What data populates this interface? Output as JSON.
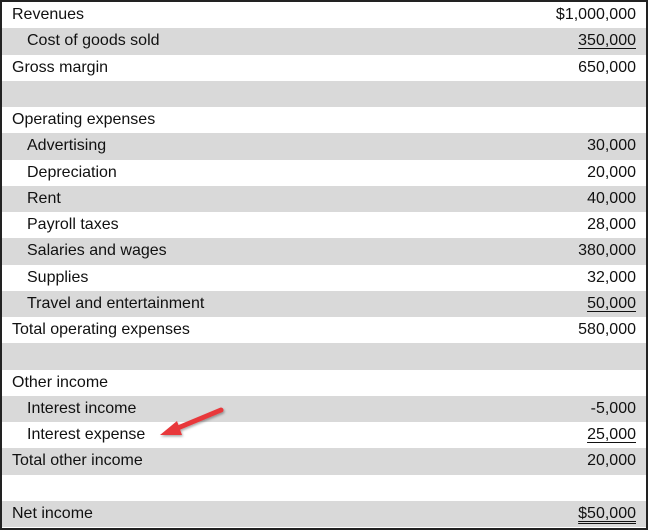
{
  "statement": {
    "rows": [
      {
        "label": "Revenues",
        "value": "$1,000,000",
        "indent": false,
        "shaded": false,
        "underline": "none"
      },
      {
        "label": "Cost of goods sold",
        "value": "350,000",
        "indent": true,
        "shaded": true,
        "underline": "single"
      },
      {
        "label": "Gross margin",
        "value": "650,000",
        "indent": false,
        "shaded": false,
        "underline": "none"
      },
      {
        "label": "",
        "value": "",
        "indent": false,
        "shaded": true,
        "underline": "none"
      },
      {
        "label": "Operating expenses",
        "value": "",
        "indent": false,
        "shaded": false,
        "underline": "none"
      },
      {
        "label": "Advertising",
        "value": "30,000",
        "indent": true,
        "shaded": true,
        "underline": "none"
      },
      {
        "label": "Depreciation",
        "value": "20,000",
        "indent": true,
        "shaded": false,
        "underline": "none"
      },
      {
        "label": "Rent",
        "value": "40,000",
        "indent": true,
        "shaded": true,
        "underline": "none"
      },
      {
        "label": "Payroll taxes",
        "value": "28,000",
        "indent": true,
        "shaded": false,
        "underline": "none"
      },
      {
        "label": "Salaries and wages",
        "value": "380,000",
        "indent": true,
        "shaded": true,
        "underline": "none"
      },
      {
        "label": "Supplies",
        "value": "32,000",
        "indent": true,
        "shaded": false,
        "underline": "none"
      },
      {
        "label": "Travel and entertainment",
        "value": "50,000",
        "indent": true,
        "shaded": true,
        "underline": "single"
      },
      {
        "label": "Total operating expenses",
        "value": "580,000",
        "indent": false,
        "shaded": false,
        "underline": "none"
      },
      {
        "label": "",
        "value": "",
        "indent": false,
        "shaded": true,
        "underline": "none"
      },
      {
        "label": "Other income",
        "value": "",
        "indent": false,
        "shaded": false,
        "underline": "none"
      },
      {
        "label": "Interest income",
        "value": "-5,000",
        "indent": true,
        "shaded": true,
        "underline": "none"
      },
      {
        "label": "Interest expense",
        "value": "25,000",
        "indent": true,
        "shaded": false,
        "underline": "single"
      },
      {
        "label": "Total other income",
        "value": "20,000",
        "indent": false,
        "shaded": true,
        "underline": "none"
      },
      {
        "label": "",
        "value": "",
        "indent": false,
        "shaded": false,
        "underline": "none"
      },
      {
        "label": "Net income",
        "value": "$50,000",
        "indent": false,
        "shaded": true,
        "underline": "double"
      }
    ]
  },
  "annotation": {
    "icon": "red-arrow-icon",
    "points_to": "Interest expense",
    "color": "#e8393b"
  },
  "colors": {
    "shaded_row": "#d9d9d9",
    "border": "#222222",
    "text": "#111111"
  }
}
